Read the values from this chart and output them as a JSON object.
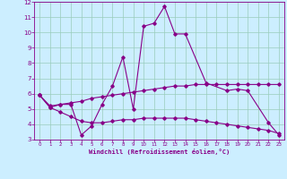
{
  "xlabel": "Windchill (Refroidissement éolien,°C)",
  "background_color": "#cceeff",
  "line_color": "#880088",
  "grid_color": "#99ccbb",
  "x_min": 0,
  "x_max": 23,
  "y_min": 3,
  "y_max": 12,
  "series1_y": [
    5.9,
    5.1,
    5.3,
    5.3,
    3.3,
    3.9,
    5.3,
    6.5,
    8.4,
    5.0,
    10.4,
    10.6,
    11.7,
    9.9,
    9.9,
    6.7,
    6.2,
    6.3,
    6.2,
    4.1,
    3.3
  ],
  "series1_x": [
    0,
    1,
    2,
    3,
    4,
    5,
    6,
    7,
    8,
    9,
    10,
    11,
    12,
    13,
    14,
    16,
    18,
    19,
    20,
    22,
    23
  ],
  "series2_y": [
    5.9,
    5.2,
    5.3,
    5.4,
    5.5,
    5.7,
    5.8,
    5.9,
    6.0,
    6.1,
    6.2,
    6.3,
    6.4,
    6.5,
    6.5,
    6.6,
    6.6,
    6.6,
    6.6,
    6.6,
    6.6,
    6.6,
    6.6,
    6.6
  ],
  "series2_x": [
    0,
    1,
    2,
    3,
    4,
    5,
    6,
    7,
    8,
    9,
    10,
    11,
    12,
    13,
    14,
    15,
    16,
    17,
    18,
    19,
    20,
    21,
    22,
    23
  ],
  "series3_y": [
    5.9,
    5.1,
    4.8,
    4.5,
    4.2,
    4.1,
    4.1,
    4.2,
    4.3,
    4.3,
    4.4,
    4.4,
    4.4,
    4.4,
    4.4,
    4.3,
    4.2,
    4.1,
    4.0,
    3.9,
    3.8,
    3.7,
    3.6,
    3.4
  ],
  "series3_x": [
    0,
    1,
    2,
    3,
    4,
    5,
    6,
    7,
    8,
    9,
    10,
    11,
    12,
    13,
    14,
    15,
    16,
    17,
    18,
    19,
    20,
    21,
    22,
    23
  ]
}
